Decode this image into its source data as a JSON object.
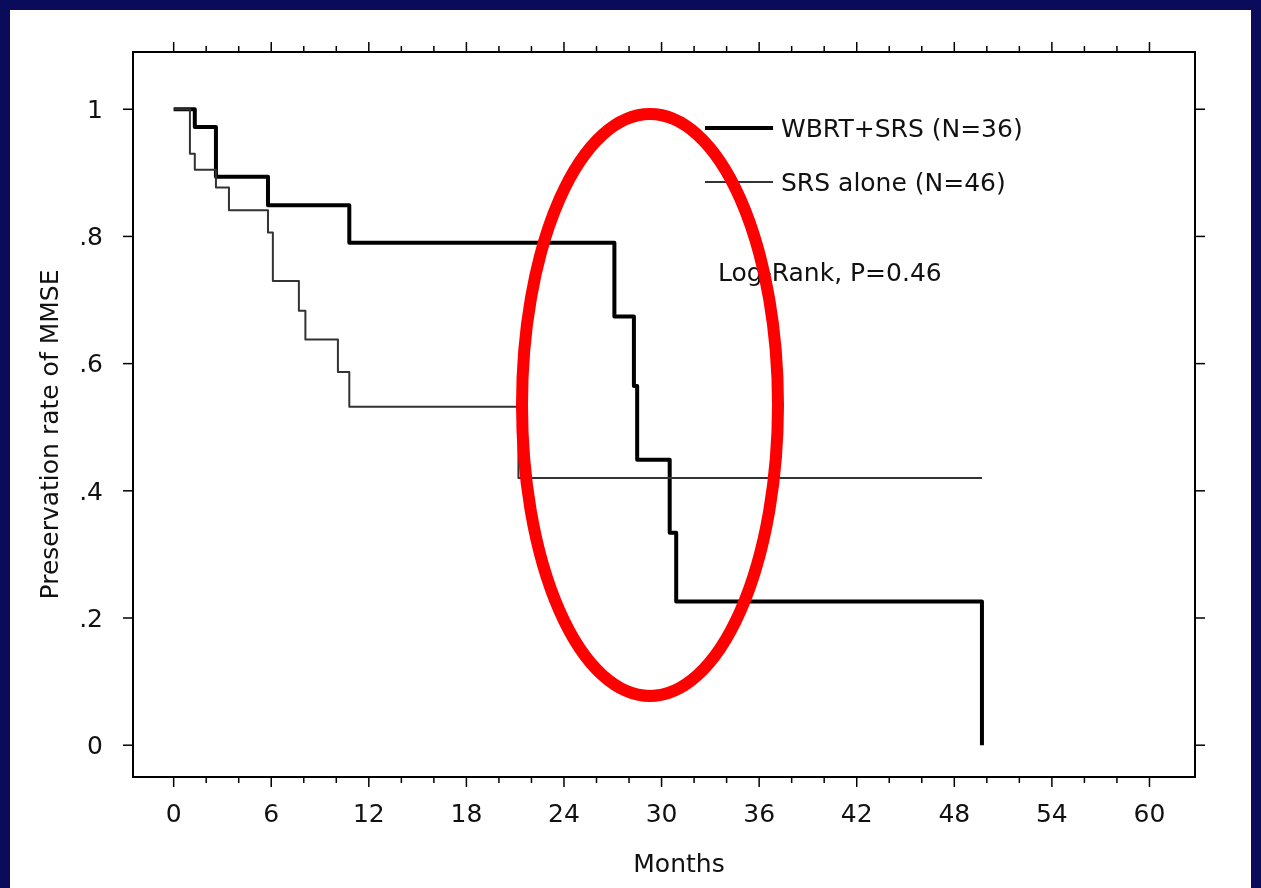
{
  "chart_data": {
    "type": "step",
    "xlabel": "Months",
    "ylabel": "Preservation rate of MMSE",
    "xlim": [
      -2.5,
      62.8
    ],
    "ylim": [
      -0.05,
      1.09
    ],
    "xticks": [
      0,
      {
        "value": 2,
        "label": null
      },
      {
        "value": 4,
        "label": null
      },
      6,
      {
        "value": 8,
        "label": null
      },
      {
        "value": 10,
        "label": null
      },
      12,
      {
        "value": 14,
        "label": null
      },
      {
        "value": 16,
        "label": null
      },
      18,
      {
        "value": 20,
        "label": null
      },
      {
        "value": 22,
        "label": null
      },
      24,
      {
        "value": 26,
        "label": null
      },
      {
        "value": 28,
        "label": null
      },
      30,
      {
        "value": 32,
        "label": null
      },
      {
        "value": 34,
        "label": null
      },
      36,
      {
        "value": 38,
        "label": null
      },
      {
        "value": 40,
        "label": null
      },
      42,
      {
        "value": 44,
        "label": null
      },
      {
        "value": 46,
        "label": null
      },
      48,
      {
        "value": 50,
        "label": null
      },
      {
        "value": 52,
        "label": null
      },
      54,
      {
        "value": 56,
        "label": null
      },
      {
        "value": 58,
        "label": null
      },
      60
    ],
    "yticks": [
      0,
      {
        "value": 0.2,
        "label": ".2"
      },
      {
        "value": 0.4,
        "label": ".4"
      },
      {
        "value": 0.6,
        "label": ".6"
      },
      {
        "value": 0.8,
        "label": ".8"
      },
      1
    ],
    "legend": "top right",
    "grid": false,
    "series": [
      {
        "name": "WBRT+SRS (N=36)",
        "color": "#000000",
        "x": [
          0,
          1.3,
          2.6,
          5.8,
          10.8,
          27.1,
          28.3,
          28.5,
          30.5,
          30.9,
          49.7
        ],
        "values": [
          1,
          0.972,
          0.894,
          0.849,
          0.79,
          0.674,
          0.565,
          0.449,
          0.334,
          0.226,
          0
        ]
      },
      {
        "name": "SRS alone (N=46)",
        "color": "#333333",
        "x": [
          0,
          1.0,
          1.3,
          2.6,
          3.4,
          5.8,
          6.1,
          7.7,
          8.1,
          10.1,
          10.8,
          21.2,
          49.7
        ],
        "values": [
          1,
          0.93,
          0.905,
          0.877,
          0.841,
          0.806,
          0.73,
          0.683,
          0.638,
          0.587,
          0.532,
          0.42,
          0.42
        ]
      }
    ],
    "annotations": [
      "Log-Rank, P=0.46"
    ]
  }
}
